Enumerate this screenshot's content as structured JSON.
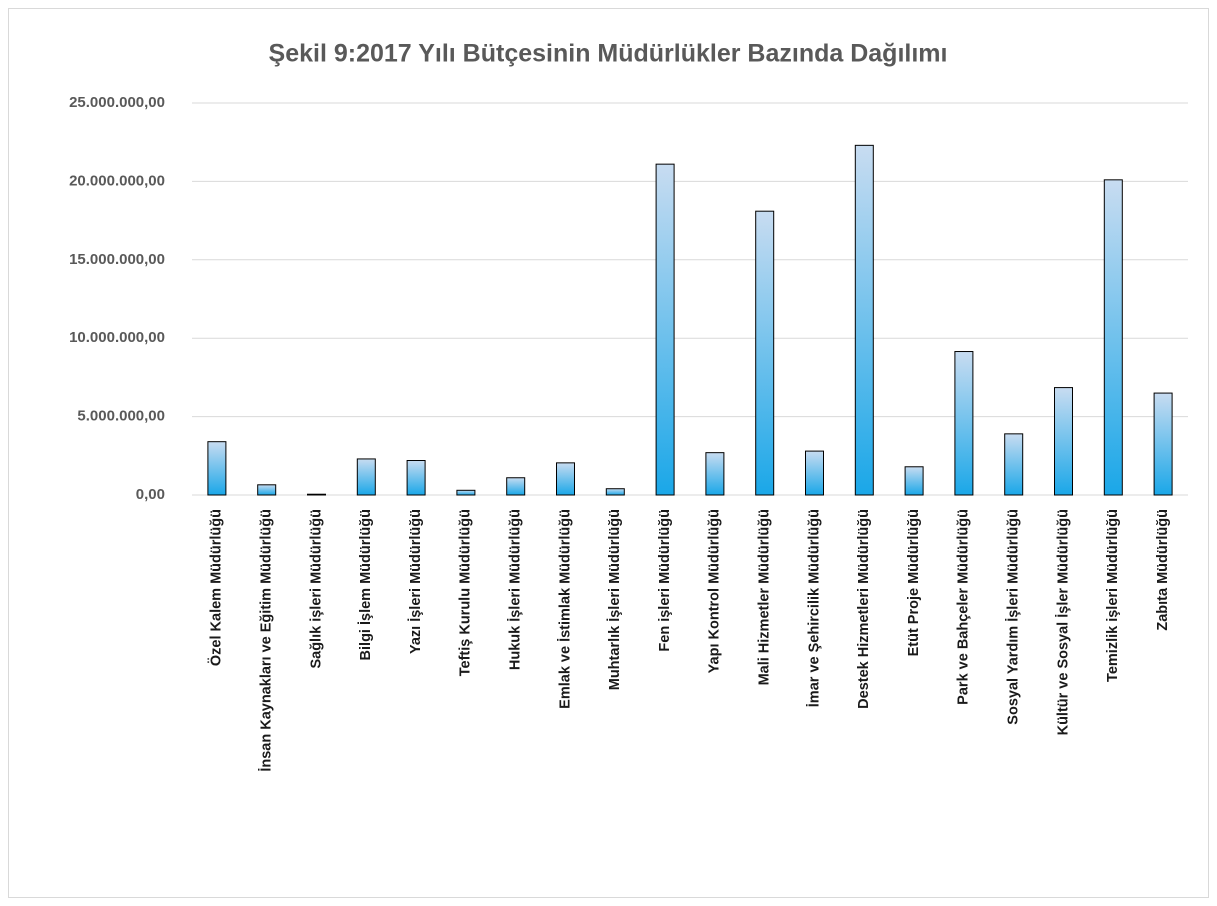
{
  "chart_data": {
    "type": "bar",
    "title": "Şekil 9:2017 Yılı Bütçesinin Müdürlükler Bazında Dağılımı",
    "categories": [
      "Özel Kalem Müdürlüğü",
      "İnsan Kaynakları ve Eğitim Müdürlüğü",
      "Sağlık işleri Müdürlüğü",
      "Bilgi İşlem Müdürlüğü",
      "Yazı İşleri Müdürlüğü",
      "Teftiş Kurulu Müdürlüğü",
      "Hukuk İşleri Müdürlüğü",
      "Emlak ve İstimlak Müdürlüğü",
      "Muhtarlık İşleri Müdürlüğü",
      "Fen işleri Müdürlüğü",
      "Yapı Kontrol Müdürlüğü",
      "Mali Hizmetler Müdürlüğü",
      "İmar ve Şehircilik Müdürlüğü",
      "Destek Hizmetleri Müdürlüğü",
      "Etüt Proje Müdürlüğü",
      "Park ve Bahçeler Müdürlüğü",
      "Sosyal Yardım İşleri Müdürlüğü",
      "Kültür ve Sosyal İşler Müdürlüğü",
      "Temizlik işleri Müdürlüğü",
      "Zabıta Müdürlüğü"
    ],
    "values": [
      3400000,
      650000,
      50000,
      2300000,
      2200000,
      300000,
      1100000,
      2050000,
      400000,
      21100000,
      2700000,
      18100000,
      2800000,
      22300000,
      1800000,
      9150000,
      3900000,
      6850000,
      20100000,
      6500000
    ],
    "color": "#1aa7e8",
    "ylim": [
      0,
      25000000
    ],
    "yticks": [
      {
        "value": 0,
        "label": "0,00"
      },
      {
        "value": 5000000,
        "label": "5.000.000,00"
      },
      {
        "value": 10000000,
        "label": "10.000.000,00"
      },
      {
        "value": 15000000,
        "label": "15.000.000,00"
      },
      {
        "value": 20000000,
        "label": "20.000.000,00"
      },
      {
        "value": 25000000,
        "label": "25.000.000,00"
      }
    ],
    "grid": true
  }
}
